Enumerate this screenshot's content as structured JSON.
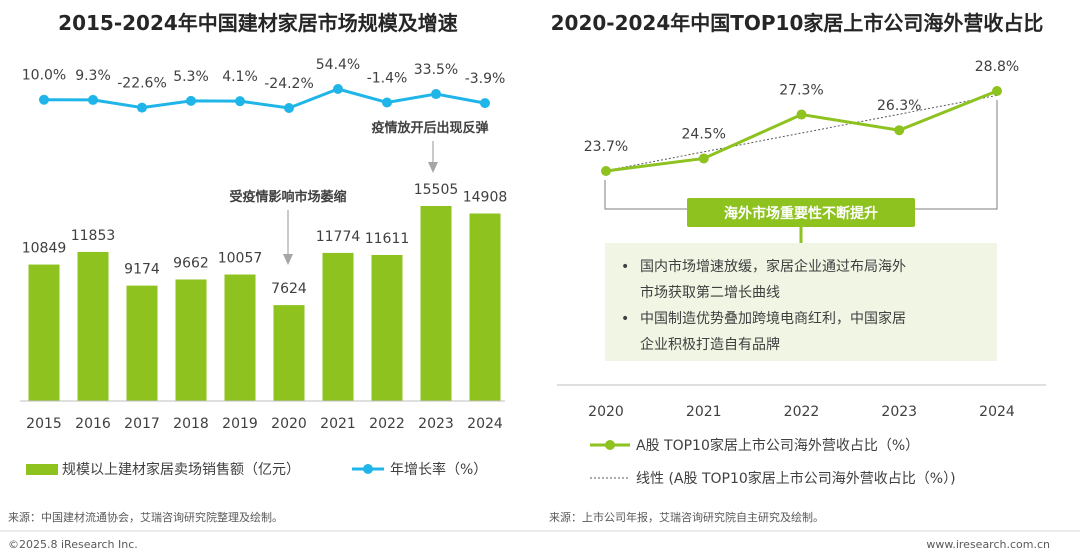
{
  "chart_data": [
    {
      "type": "bar",
      "title": "2015-2024年中国建材家居市场规模及增速",
      "categories": [
        "2015",
        "2016",
        "2017",
        "2018",
        "2019",
        "2020",
        "2021",
        "2022",
        "2023",
        "2024"
      ],
      "series": [
        {
          "name": "规模以上建材家居卖场销售额（亿元）",
          "type": "bar",
          "values": [
            10849,
            11853,
            9174,
            9662,
            10057,
            7624,
            11774,
            11611,
            15505,
            14908
          ]
        },
        {
          "name": "年增长率（%）",
          "type": "line",
          "values": [
            10.0,
            9.3,
            -22.6,
            5.3,
            4.1,
            -24.2,
            54.4,
            -1.4,
            33.5,
            -3.9
          ],
          "labels": [
            "10.0%",
            "9.3%",
            "-22.6%",
            "5.3%",
            "4.1%",
            "-24.2%",
            "54.4%",
            "-1.4%",
            "33.5%",
            "-3.9%"
          ]
        }
      ],
      "annotations": [
        "受疫情影响市场萎缩",
        "疫情放开后出现反弹"
      ],
      "colors": {
        "bar": "#8DC21F",
        "line": "#1FB5E8"
      }
    },
    {
      "type": "line",
      "title": "2020-2024年中国TOP10家居上市公司海外营收占比",
      "categories": [
        "2020",
        "2021",
        "2022",
        "2023",
        "2024"
      ],
      "series": [
        {
          "name": "A股 TOP10家居上市公司海外营收占比（%）",
          "values": [
            23.7,
            24.5,
            27.3,
            26.3,
            28.8
          ],
          "labels": [
            "23.7%",
            "24.5%",
            "27.3%",
            "26.3%",
            "28.8%"
          ]
        },
        {
          "name": "线性 (A股 TOP10家居上市公司海外营收占比（%）)",
          "style": "dotted-trendline"
        }
      ],
      "callout": {
        "badge": "海外市场重要性不断提升",
        "bullets": [
          [
            "国内市场增速放缓，家居企业通过布局海外",
            "市场获取第二增长曲线"
          ],
          [
            "中国制造优势叠加跨境电商红利，中国家居",
            "企业积极打造自有品牌"
          ]
        ]
      },
      "colors": {
        "line": "#8DC21F",
        "callout_bg": "#F0F5E4",
        "badge_bg": "#8DC21F"
      }
    }
  ],
  "sources": {
    "left": "来源：中国建材流通协会，艾瑞咨询研究院整理及绘制。",
    "right": "来源：上市公司年报，艾瑞咨询研究院自主研究及绘制。"
  },
  "footer": {
    "copyright": "©2025.8 iResearch Inc.",
    "site": "www.iresearch.com.cn"
  }
}
